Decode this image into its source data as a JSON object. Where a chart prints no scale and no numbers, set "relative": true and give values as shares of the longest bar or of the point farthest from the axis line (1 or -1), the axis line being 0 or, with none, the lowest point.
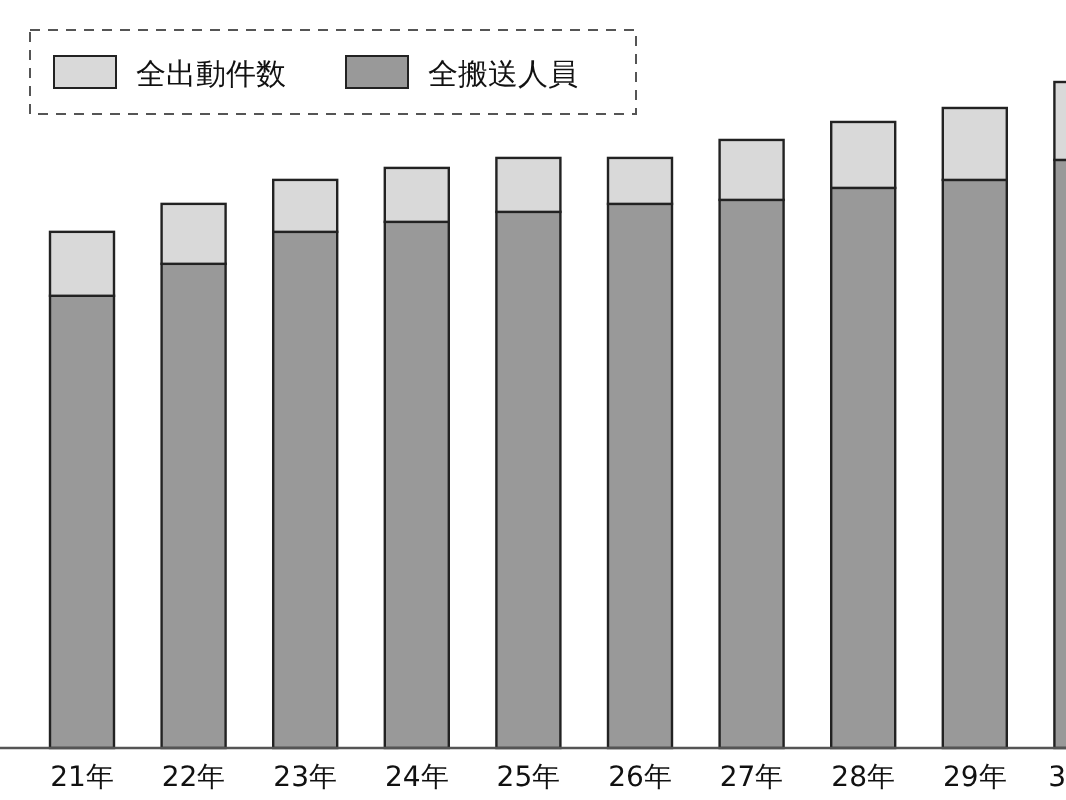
{
  "chart_data": {
    "type": "bar",
    "stacked": true,
    "relative": true,
    "legend": "top left",
    "categories": [
      "21年",
      "22年",
      "23年",
      "24年",
      "25年",
      "26年",
      "27年",
      "28年",
      "29年",
      "3"
    ],
    "series": [
      {
        "name": "全搬送人員",
        "color": "#999999",
        "values": [
          0.679,
          0.727,
          0.775,
          0.79,
          0.805,
          0.817,
          0.823,
          0.841,
          0.853,
          0.883
        ]
      },
      {
        "name": "全出動件数",
        "color": "#d9d9d9",
        "values": [
          0.096,
          0.09,
          0.078,
          0.081,
          0.081,
          0.069,
          0.09,
          0.099,
          0.108,
          0.117
        ]
      }
    ]
  }
}
